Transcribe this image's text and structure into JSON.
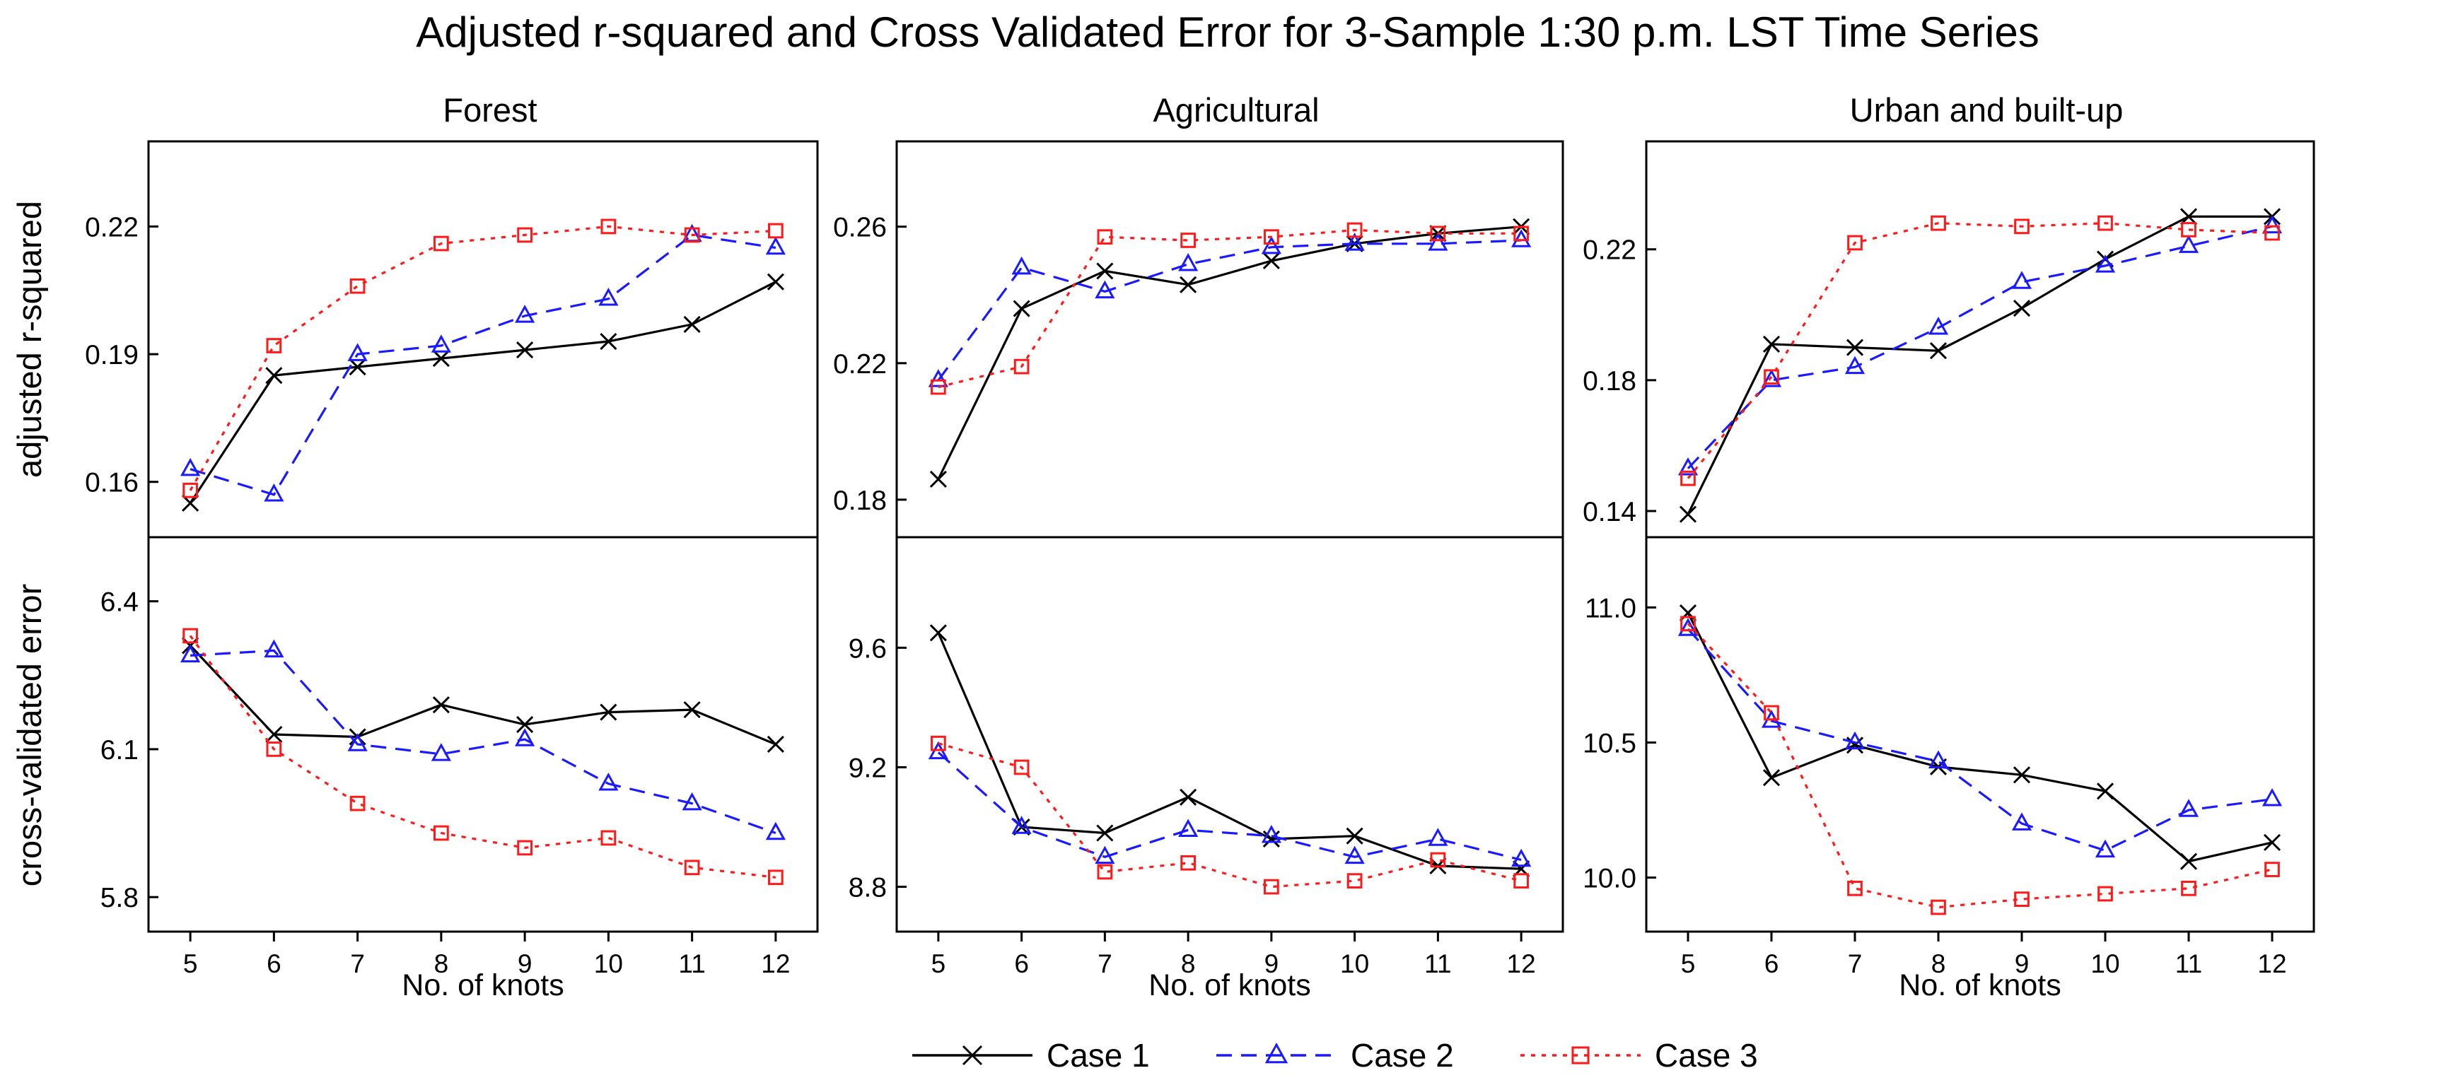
{
  "title": "Adjusted r-squared and Cross Validated Error for 3-Sample 1:30 p.m. LST Time Series",
  "xlabel": "No. of knots",
  "ylabels": {
    "top": "adjusted r-squared",
    "bottom": "cross-validated error"
  },
  "legend": [
    {
      "name": "Case 1",
      "color": "#000000",
      "marker": "x",
      "dash": "solid"
    },
    {
      "name": "Case 2",
      "color": "#1a1aff",
      "marker": "triangle",
      "dash": "dashed"
    },
    {
      "name": "Case 3",
      "color": "#ff1a1a",
      "marker": "square",
      "dash": "dotted"
    }
  ],
  "chart_data": [
    {
      "type": "line",
      "panel": "Forest - adjusted r-squared",
      "title": "Forest",
      "x": [
        5,
        6,
        7,
        8,
        9,
        10,
        11,
        12
      ],
      "xticks": [
        "5",
        "6",
        "7",
        "8",
        "9",
        "10",
        "11",
        "12"
      ],
      "xlim": [
        4.5,
        12.5
      ],
      "ylim": [
        0.147,
        0.24
      ],
      "yticks": [
        0.16,
        0.19,
        0.22
      ],
      "ytick_labels": [
        "0.16",
        "0.19",
        "0.22"
      ],
      "series": [
        {
          "name": "Case 1",
          "values": [
            0.155,
            0.185,
            0.187,
            0.189,
            0.191,
            0.193,
            0.197,
            0.207
          ]
        },
        {
          "name": "Case 2",
          "values": [
            0.163,
            0.157,
            0.19,
            0.192,
            0.199,
            0.203,
            0.218,
            0.215
          ]
        },
        {
          "name": "Case 3",
          "values": [
            0.158,
            0.192,
            0.206,
            0.216,
            0.218,
            0.22,
            0.218,
            0.219
          ]
        }
      ]
    },
    {
      "type": "line",
      "panel": "Agricultural - adjusted r-squared",
      "title": "Agricultural",
      "x": [
        5,
        6,
        7,
        8,
        9,
        10,
        11,
        12
      ],
      "xticks": [
        "5",
        "6",
        "7",
        "8",
        "9",
        "10",
        "11",
        "12"
      ],
      "xlim": [
        4.5,
        12.5
      ],
      "ylim": [
        0.169,
        0.285
      ],
      "yticks": [
        0.18,
        0.22,
        0.26
      ],
      "ytick_labels": [
        "0.18",
        "0.22",
        "0.26"
      ],
      "series": [
        {
          "name": "Case 1",
          "values": [
            0.186,
            0.236,
            0.247,
            0.243,
            0.25,
            0.255,
            0.258,
            0.26
          ]
        },
        {
          "name": "Case 2",
          "values": [
            0.215,
            0.248,
            0.241,
            0.249,
            0.254,
            0.255,
            0.255,
            0.256
          ]
        },
        {
          "name": "Case 3",
          "values": [
            0.213,
            0.219,
            0.257,
            0.256,
            0.257,
            0.259,
            0.258,
            0.258
          ]
        }
      ]
    },
    {
      "type": "line",
      "panel": "Urban and built-up - adjusted r-squared",
      "title": "Urban and built-up",
      "x": [
        5,
        6,
        7,
        8,
        9,
        10,
        11,
        12
      ],
      "xticks": [
        "5",
        "6",
        "7",
        "8",
        "9",
        "10",
        "11",
        "12"
      ],
      "xlim": [
        4.5,
        12.5
      ],
      "ylim": [
        0.132,
        0.253
      ],
      "yticks": [
        0.14,
        0.18,
        0.22
      ],
      "ytick_labels": [
        "0.14",
        "0.18",
        "0.22"
      ],
      "series": [
        {
          "name": "Case 1",
          "values": [
            0.139,
            0.191,
            0.19,
            0.189,
            0.202,
            0.217,
            0.23,
            0.23
          ]
        },
        {
          "name": "Case 2",
          "values": [
            0.153,
            0.18,
            0.184,
            0.196,
            0.21,
            0.215,
            0.221,
            0.227
          ]
        },
        {
          "name": "Case 3",
          "values": [
            0.15,
            0.181,
            0.222,
            0.228,
            0.227,
            0.228,
            0.226,
            0.225
          ]
        }
      ]
    },
    {
      "type": "line",
      "panel": "Forest - cross-validated error",
      "x": [
        5,
        6,
        7,
        8,
        9,
        10,
        11,
        12
      ],
      "xticks": [
        "5",
        "6",
        "7",
        "8",
        "9",
        "10",
        "11",
        "12"
      ],
      "xlim": [
        4.5,
        12.5
      ],
      "ylim": [
        5.73,
        6.53
      ],
      "yticks": [
        5.8,
        6.1,
        6.4
      ],
      "ytick_labels": [
        "5.8",
        "6.1",
        "6.4"
      ],
      "series": [
        {
          "name": "Case 1",
          "values": [
            6.31,
            6.13,
            6.125,
            6.19,
            6.15,
            6.175,
            6.18,
            6.11
          ]
        },
        {
          "name": "Case 2",
          "values": [
            6.29,
            6.3,
            6.11,
            6.09,
            6.12,
            6.03,
            5.99,
            5.93
          ]
        },
        {
          "name": "Case 3",
          "values": [
            6.33,
            6.1,
            5.99,
            5.93,
            5.9,
            5.92,
            5.86,
            5.84
          ]
        }
      ]
    },
    {
      "type": "line",
      "panel": "Agricultural - cross-validated error",
      "x": [
        5,
        6,
        7,
        8,
        9,
        10,
        11,
        12
      ],
      "xticks": [
        "5",
        "6",
        "7",
        "8",
        "9",
        "10",
        "11",
        "12"
      ],
      "xlim": [
        4.5,
        12.5
      ],
      "ylim": [
        8.65,
        9.97
      ],
      "yticks": [
        8.8,
        9.2,
        9.6
      ],
      "ytick_labels": [
        "8.8",
        "9.2",
        "9.6"
      ],
      "series": [
        {
          "name": "Case 1",
          "values": [
            9.65,
            9.0,
            8.98,
            9.1,
            8.96,
            8.97,
            8.87,
            8.86
          ]
        },
        {
          "name": "Case 2",
          "values": [
            9.25,
            9.0,
            8.9,
            8.99,
            8.97,
            8.9,
            8.96,
            8.89
          ]
        },
        {
          "name": "Case 3",
          "values": [
            9.28,
            9.2,
            8.85,
            8.88,
            8.8,
            8.82,
            8.89,
            8.82
          ]
        }
      ]
    },
    {
      "type": "line",
      "panel": "Urban and built-up - cross-validated error",
      "x": [
        5,
        6,
        7,
        8,
        9,
        10,
        11,
        12
      ],
      "xticks": [
        "5",
        "6",
        "7",
        "8",
        "9",
        "10",
        "11",
        "12"
      ],
      "xlim": [
        4.5,
        12.5
      ],
      "ylim": [
        9.8,
        11.26
      ],
      "yticks": [
        10.0,
        10.5,
        11.0
      ],
      "ytick_labels": [
        "10.0",
        "10.5",
        "11.0"
      ],
      "series": [
        {
          "name": "Case 1",
          "values": [
            10.98,
            10.37,
            10.49,
            10.41,
            10.38,
            10.32,
            10.06,
            10.13
          ]
        },
        {
          "name": "Case 2",
          "values": [
            10.92,
            10.58,
            10.5,
            10.43,
            10.2,
            10.1,
            10.25,
            10.29
          ]
        },
        {
          "name": "Case 3",
          "values": [
            10.94,
            10.61,
            9.96,
            9.89,
            9.92,
            9.94,
            9.96,
            10.03
          ]
        }
      ]
    }
  ]
}
